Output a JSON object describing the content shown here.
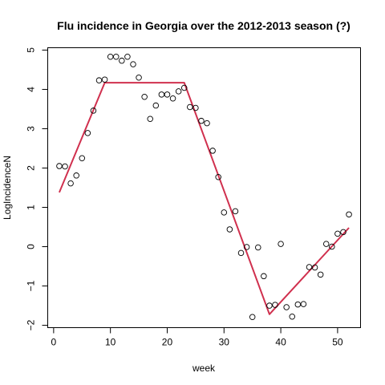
{
  "chart_data": {
    "type": "scatter",
    "title": "Flu incidence in Georgia over the 2012-2013 season (?)",
    "xlabel": "week",
    "ylabel": "LogIncidenceN",
    "xlim": [
      -1.04,
      54.04
    ],
    "ylim": [
      -2.06,
      5.06
    ],
    "xticks": [
      0,
      10,
      20,
      30,
      40,
      50
    ],
    "yticks": [
      -2,
      -1,
      0,
      1,
      2,
      3,
      4,
      5
    ],
    "grid": false,
    "points": [
      {
        "x": 1,
        "y": 2.05
      },
      {
        "x": 2,
        "y": 2.04
      },
      {
        "x": 3,
        "y": 1.61
      },
      {
        "x": 4,
        "y": 1.81
      },
      {
        "x": 5,
        "y": 2.25
      },
      {
        "x": 6,
        "y": 2.89
      },
      {
        "x": 7,
        "y": 3.46
      },
      {
        "x": 8,
        "y": 4.23
      },
      {
        "x": 9,
        "y": 4.25
      },
      {
        "x": 10,
        "y": 4.83
      },
      {
        "x": 11,
        "y": 4.83
      },
      {
        "x": 12,
        "y": 4.73
      },
      {
        "x": 13,
        "y": 4.83
      },
      {
        "x": 14,
        "y": 4.64
      },
      {
        "x": 15,
        "y": 4.3
      },
      {
        "x": 16,
        "y": 3.81
      },
      {
        "x": 17,
        "y": 3.25
      },
      {
        "x": 18,
        "y": 3.59
      },
      {
        "x": 19,
        "y": 3.87
      },
      {
        "x": 20,
        "y": 3.87
      },
      {
        "x": 21,
        "y": 3.77
      },
      {
        "x": 22,
        "y": 3.95
      },
      {
        "x": 23,
        "y": 4.04
      },
      {
        "x": 24,
        "y": 3.55
      },
      {
        "x": 25,
        "y": 3.53
      },
      {
        "x": 26,
        "y": 3.2
      },
      {
        "x": 27,
        "y": 3.14
      },
      {
        "x": 28,
        "y": 2.44
      },
      {
        "x": 29,
        "y": 1.77
      },
      {
        "x": 30,
        "y": 0.87
      },
      {
        "x": 31,
        "y": 0.44
      },
      {
        "x": 32,
        "y": 0.9
      },
      {
        "x": 33,
        "y": -0.16
      },
      {
        "x": 34,
        "y": -0.01
      },
      {
        "x": 35,
        "y": -1.79
      },
      {
        "x": 36,
        "y": -0.02
      },
      {
        "x": 37,
        "y": -0.75
      },
      {
        "x": 38,
        "y": -1.5
      },
      {
        "x": 39,
        "y": -1.48
      },
      {
        "x": 40,
        "y": 0.07
      },
      {
        "x": 41,
        "y": -1.54
      },
      {
        "x": 42,
        "y": -1.78
      },
      {
        "x": 43,
        "y": -1.47
      },
      {
        "x": 44,
        "y": -1.46
      },
      {
        "x": 45,
        "y": -0.52
      },
      {
        "x": 46,
        "y": -0.53
      },
      {
        "x": 47,
        "y": -0.71
      },
      {
        "x": 48,
        "y": 0.07
      },
      {
        "x": 49,
        "y": 0.0
      },
      {
        "x": 50,
        "y": 0.33
      },
      {
        "x": 51,
        "y": 0.37
      },
      {
        "x": 52,
        "y": 0.82
      }
    ],
    "fit_line": {
      "color": "#d0304e",
      "x": [
        1,
        9,
        23,
        38,
        52
      ],
      "y": [
        1.38,
        4.17,
        4.17,
        -1.72,
        0.48
      ]
    }
  }
}
